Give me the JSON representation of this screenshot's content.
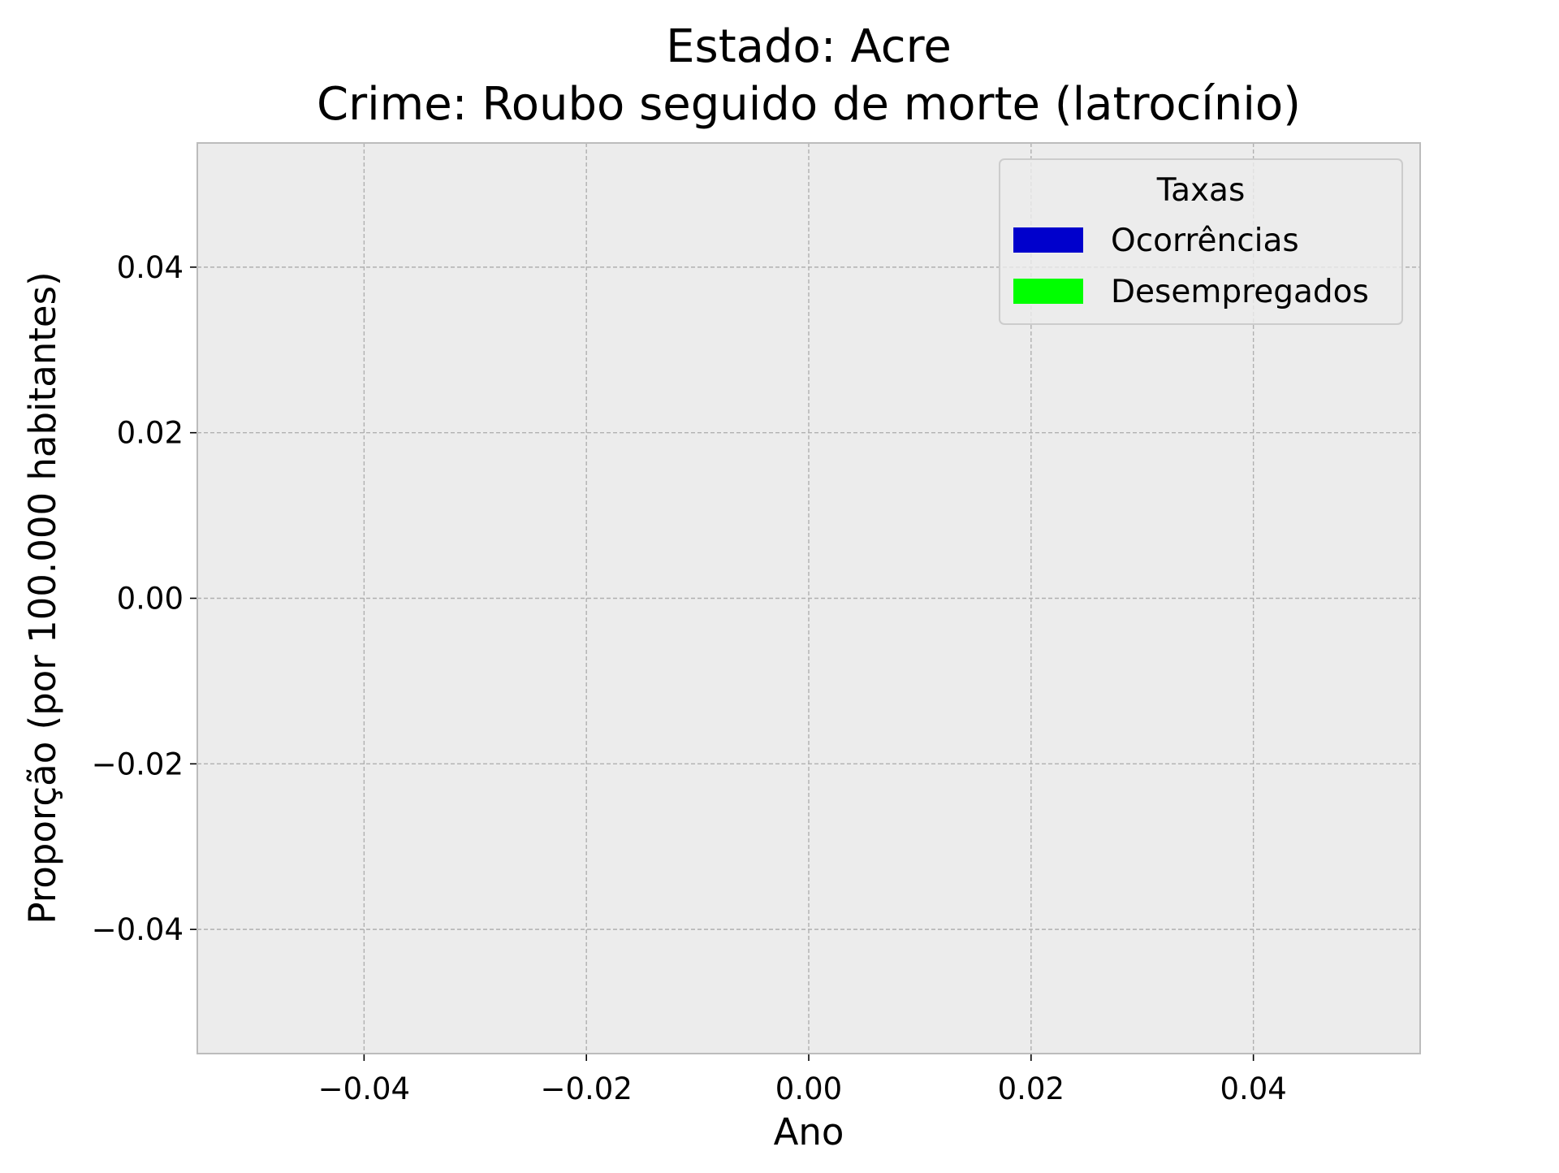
{
  "chart_data": {
    "type": "bar",
    "title": "Estado: Acre",
    "subtitle": "Crime: Roubo seguido de morte (latrocínio)",
    "xlabel": "Ano",
    "ylabel": "Proporção (por 100.000 habitantes)",
    "xlim": [
      -0.055,
      0.055
    ],
    "ylim": [
      -0.055,
      0.055
    ],
    "x_ticks": [
      -0.04,
      -0.02,
      0.0,
      0.02,
      0.04
    ],
    "x_tick_labels": [
      "−0.04",
      "−0.02",
      "0.00",
      "0.02",
      "0.04"
    ],
    "y_ticks": [
      -0.04,
      -0.02,
      0.0,
      0.02,
      0.04
    ],
    "y_tick_labels": [
      "−0.04",
      "−0.02",
      "0.00",
      "0.02",
      "0.04"
    ],
    "categories": [],
    "series": [
      {
        "name": "Ocorrências",
        "values": [],
        "color": "#0000cc"
      },
      {
        "name": "Desempregados",
        "values": [],
        "color": "#00ff00"
      }
    ],
    "legend": {
      "title": "Taxas",
      "placement": "top-right"
    },
    "grid": true,
    "colors": {
      "plot_background": "#ececec",
      "frame": "#bcbcbc",
      "grid": "#b0b0b0"
    }
  }
}
